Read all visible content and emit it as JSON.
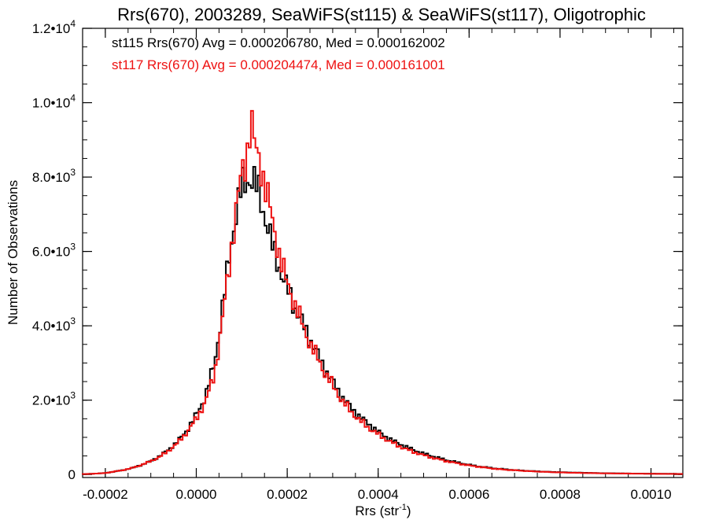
{
  "chart_data": {
    "type": "histogram",
    "title": "Rrs(670), 2003289, SeaWiFS(st115) & SeaWiFS(st117), Oligotrophic",
    "xlabel": {
      "base": "Rrs (str",
      "sup": "-1",
      "close": ")"
    },
    "ylabel": "Number of Observations",
    "xlim": [
      -0.00025,
      0.00107
    ],
    "ylim": [
      -80,
      12000
    ],
    "x_ticks": [
      {
        "value": -0.0002,
        "label": "-0.0002"
      },
      {
        "value": 0.0,
        "label": "0.0000"
      },
      {
        "value": 0.0002,
        "label": "0.0002"
      },
      {
        "value": 0.0004,
        "label": "0.0004"
      },
      {
        "value": 0.0006,
        "label": "0.0006"
      },
      {
        "value": 0.0008,
        "label": "0.0008"
      },
      {
        "value": 0.001,
        "label": "0.0010"
      }
    ],
    "y_ticks": [
      {
        "value": 0,
        "mant": "0",
        "exp": ""
      },
      {
        "value": 2000,
        "mant": "2.0•10",
        "exp": "3"
      },
      {
        "value": 4000,
        "mant": "4.0•10",
        "exp": "3"
      },
      {
        "value": 6000,
        "mant": "6.0•10",
        "exp": "3"
      },
      {
        "value": 8000,
        "mant": "8.0•10",
        "exp": "3"
      },
      {
        "value": 10000,
        "mant": "1.0•10",
        "exp": "4"
      },
      {
        "value": 12000,
        "mant": "1.2•10",
        "exp": "4"
      }
    ],
    "legend_position": "top-left",
    "series": [
      {
        "label": "st115 Rrs(670) Avg = 0.000206780, Med = 0.000162002",
        "color": "#000000",
        "points": [
          [
            -0.00025,
            10
          ],
          [
            -0.00023,
            20
          ],
          [
            -0.0002,
            40
          ],
          [
            -0.00018,
            80
          ],
          [
            -0.00016,
            120
          ],
          [
            -0.00014,
            180
          ],
          [
            -0.00012,
            260
          ],
          [
            -0.0001,
            360
          ],
          [
            -8e-05,
            500
          ],
          [
            -6e-05,
            680
          ],
          [
            -4e-05,
            900
          ],
          [
            -2e-05,
            1200
          ],
          [
            0.0,
            1600
          ],
          [
            2e-05,
            2100
          ],
          [
            4e-05,
            3000
          ],
          [
            5e-05,
            3800
          ],
          [
            6e-05,
            4700
          ],
          [
            7e-05,
            5600
          ],
          [
            8e-05,
            6500
          ],
          [
            9e-05,
            7200
          ],
          [
            0.0001,
            7700
          ],
          [
            0.00011,
            7900
          ],
          [
            0.00012,
            8000
          ],
          [
            0.00013,
            7800
          ],
          [
            0.00014,
            7500
          ],
          [
            0.00015,
            7000
          ],
          [
            0.00016,
            6500
          ],
          [
            0.00017,
            6000
          ],
          [
            0.00018,
            5700
          ],
          [
            0.00019,
            5300
          ],
          [
            0.0002,
            5000
          ],
          [
            0.00021,
            4700
          ],
          [
            0.00022,
            4400
          ],
          [
            0.00024,
            3900
          ],
          [
            0.00026,
            3400
          ],
          [
            0.00028,
            2900
          ],
          [
            0.0003,
            2500
          ],
          [
            0.00032,
            2100
          ],
          [
            0.00034,
            1800
          ],
          [
            0.00036,
            1550
          ],
          [
            0.00038,
            1350
          ],
          [
            0.0004,
            1150
          ],
          [
            0.00042,
            990
          ],
          [
            0.00044,
            860
          ],
          [
            0.00046,
            750
          ],
          [
            0.00048,
            650
          ],
          [
            0.0005,
            560
          ],
          [
            0.00052,
            490
          ],
          [
            0.00054,
            420
          ],
          [
            0.00056,
            360
          ],
          [
            0.00058,
            310
          ],
          [
            0.0006,
            260
          ],
          [
            0.00062,
            220
          ],
          [
            0.00064,
            190
          ],
          [
            0.00066,
            160
          ],
          [
            0.00068,
            140
          ],
          [
            0.0007,
            120
          ],
          [
            0.00074,
            90
          ],
          [
            0.00078,
            70
          ],
          [
            0.00082,
            55
          ],
          [
            0.00086,
            45
          ],
          [
            0.0009,
            35
          ],
          [
            0.00095,
            28
          ],
          [
            0.001,
            22
          ],
          [
            0.00106,
            18
          ]
        ]
      },
      {
        "label": "st117 Rrs(670) Avg = 0.000204474, Med = 0.000161001",
        "color": "#ee1111",
        "points": [
          [
            -0.00025,
            10
          ],
          [
            -0.00023,
            20
          ],
          [
            -0.0002,
            40
          ],
          [
            -0.00018,
            80
          ],
          [
            -0.00016,
            120
          ],
          [
            -0.00014,
            180
          ],
          [
            -0.00012,
            260
          ],
          [
            -0.0001,
            360
          ],
          [
            -8e-05,
            480
          ],
          [
            -6e-05,
            650
          ],
          [
            -4e-05,
            860
          ],
          [
            -2e-05,
            1150
          ],
          [
            0.0,
            1500
          ],
          [
            2e-05,
            1950
          ],
          [
            4e-05,
            2700
          ],
          [
            5e-05,
            3500
          ],
          [
            6e-05,
            4400
          ],
          [
            7e-05,
            5400
          ],
          [
            8e-05,
            6400
          ],
          [
            9e-05,
            7300
          ],
          [
            0.0001,
            8100
          ],
          [
            0.00011,
            8500
          ],
          [
            0.00012,
            9600
          ],
          [
            0.00013,
            8700
          ],
          [
            0.00014,
            8400
          ],
          [
            0.00015,
            7900
          ],
          [
            0.00016,
            7300
          ],
          [
            0.00017,
            6600
          ],
          [
            0.00018,
            6100
          ],
          [
            0.00019,
            5600
          ],
          [
            0.0002,
            5100
          ],
          [
            0.00021,
            4800
          ],
          [
            0.00022,
            4500
          ],
          [
            0.00024,
            3800
          ],
          [
            0.00026,
            3300
          ],
          [
            0.00028,
            2800
          ],
          [
            0.0003,
            2400
          ],
          [
            0.00032,
            2000
          ],
          [
            0.00034,
            1700
          ],
          [
            0.00036,
            1450
          ],
          [
            0.00038,
            1250
          ],
          [
            0.0004,
            1080
          ],
          [
            0.00042,
            930
          ],
          [
            0.00044,
            800
          ],
          [
            0.00046,
            690
          ],
          [
            0.00048,
            600
          ],
          [
            0.0005,
            520
          ],
          [
            0.00052,
            450
          ],
          [
            0.00054,
            390
          ],
          [
            0.00056,
            335
          ],
          [
            0.00058,
            290
          ],
          [
            0.0006,
            245
          ],
          [
            0.00062,
            210
          ],
          [
            0.00064,
            180
          ],
          [
            0.00066,
            150
          ],
          [
            0.00068,
            130
          ],
          [
            0.0007,
            115
          ],
          [
            0.00074,
            85
          ],
          [
            0.00078,
            65
          ],
          [
            0.00082,
            50
          ],
          [
            0.00086,
            40
          ],
          [
            0.0009,
            32
          ],
          [
            0.00095,
            26
          ],
          [
            0.001,
            20
          ],
          [
            0.00106,
            16
          ]
        ]
      }
    ]
  }
}
